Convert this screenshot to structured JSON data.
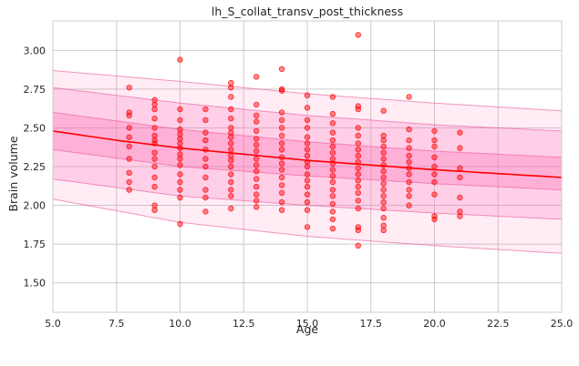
{
  "chart_data": {
    "type": "scatter",
    "title": "lh_S_collat_transv_post_thickness",
    "xlabel": "Age",
    "ylabel": "Brain volume",
    "xlim": [
      5,
      25
    ],
    "ylim": [
      1.31,
      3.19
    ],
    "xticks": [
      "5.0",
      "7.5",
      "10.0",
      "12.5",
      "15.0",
      "17.5",
      "20.0",
      "22.5",
      "25.0"
    ],
    "yticks": [
      "1.50",
      "1.75",
      "2.00",
      "2.25",
      "2.50",
      "2.75",
      "3.00"
    ],
    "grid": true,
    "colors": {
      "points": "#ff0000",
      "line": "#ff0000",
      "band": "#ff69b4",
      "band_edge": "#e8559a"
    },
    "trend": {
      "x": [
        5,
        7.5,
        10,
        12.5,
        15,
        17.5,
        20,
        22.5,
        25
      ],
      "mean": [
        2.48,
        2.42,
        2.37,
        2.33,
        2.29,
        2.26,
        2.23,
        2.205,
        2.18
      ]
    },
    "bands": [
      {
        "name": "outer",
        "x": [
          5,
          10,
          15,
          20,
          25
        ],
        "lower": [
          2.04,
          1.89,
          1.8,
          1.74,
          1.69
        ],
        "upper": [
          2.87,
          2.8,
          2.72,
          2.66,
          2.61
        ]
      },
      {
        "name": "middle",
        "x": [
          5,
          10,
          15,
          20,
          25
        ],
        "lower": [
          2.17,
          2.06,
          2.0,
          1.95,
          1.91
        ],
        "upper": [
          2.76,
          2.66,
          2.58,
          2.52,
          2.48
        ]
      },
      {
        "name": "inner",
        "x": [
          5,
          10,
          15,
          20,
          25
        ],
        "lower": [
          2.36,
          2.25,
          2.19,
          2.14,
          2.1
        ],
        "upper": [
          2.6,
          2.49,
          2.41,
          2.35,
          2.31
        ]
      }
    ],
    "points": [
      [
        8,
        2.76
      ],
      [
        8,
        2.6
      ],
      [
        8,
        2.58
      ],
      [
        8,
        2.5
      ],
      [
        8,
        2.44
      ],
      [
        8,
        2.38
      ],
      [
        8,
        2.3
      ],
      [
        8,
        2.21
      ],
      [
        8,
        2.15
      ],
      [
        8,
        2.1
      ],
      [
        9,
        2.68
      ],
      [
        9,
        2.65
      ],
      [
        9,
        2.62
      ],
      [
        9,
        2.56
      ],
      [
        9,
        2.5
      ],
      [
        9,
        2.45
      ],
      [
        9,
        2.42
      ],
      [
        9,
        2.4
      ],
      [
        9,
        2.34
      ],
      [
        9,
        2.3
      ],
      [
        9,
        2.25
      ],
      [
        9,
        2.18
      ],
      [
        9,
        2.12
      ],
      [
        9,
        2.0
      ],
      [
        9,
        1.97
      ],
      [
        10,
        2.94
      ],
      [
        10,
        2.62
      ],
      [
        10,
        2.55
      ],
      [
        10,
        2.49
      ],
      [
        10,
        2.46
      ],
      [
        10,
        2.43
      ],
      [
        10,
        2.4
      ],
      [
        10,
        2.37
      ],
      [
        10,
        2.33
      ],
      [
        10,
        2.3
      ],
      [
        10,
        2.26
      ],
      [
        10,
        2.2
      ],
      [
        10,
        2.15
      ],
      [
        10,
        2.1
      ],
      [
        10,
        2.05
      ],
      [
        10,
        1.88
      ],
      [
        11,
        2.62
      ],
      [
        11,
        2.55
      ],
      [
        11,
        2.47
      ],
      [
        11,
        2.42
      ],
      [
        11,
        2.36
      ],
      [
        11,
        2.3
      ],
      [
        11,
        2.25
      ],
      [
        11,
        2.18
      ],
      [
        11,
        2.1
      ],
      [
        11,
        2.05
      ],
      [
        11,
        1.96
      ],
      [
        12,
        2.79
      ],
      [
        12,
        2.76
      ],
      [
        12,
        2.7
      ],
      [
        12,
        2.62
      ],
      [
        12,
        2.56
      ],
      [
        12,
        2.5
      ],
      [
        12,
        2.47
      ],
      [
        12,
        2.44
      ],
      [
        12,
        2.4
      ],
      [
        12,
        2.36
      ],
      [
        12,
        2.32
      ],
      [
        12,
        2.29
      ],
      [
        12,
        2.25
      ],
      [
        12,
        2.2
      ],
      [
        12,
        2.15
      ],
      [
        12,
        2.1
      ],
      [
        12,
        2.06
      ],
      [
        12,
        1.98
      ],
      [
        13,
        2.83
      ],
      [
        13,
        2.65
      ],
      [
        13,
        2.58
      ],
      [
        13,
        2.54
      ],
      [
        13,
        2.48
      ],
      [
        13,
        2.43
      ],
      [
        13,
        2.39
      ],
      [
        13,
        2.35
      ],
      [
        13,
        2.3
      ],
      [
        13,
        2.26
      ],
      [
        13,
        2.22
      ],
      [
        13,
        2.17
      ],
      [
        13,
        2.12
      ],
      [
        13,
        2.07
      ],
      [
        13,
        2.03
      ],
      [
        13,
        1.99
      ],
      [
        14,
        2.88
      ],
      [
        14,
        2.75
      ],
      [
        14,
        2.74
      ],
      [
        14,
        2.6
      ],
      [
        14,
        2.55
      ],
      [
        14,
        2.5
      ],
      [
        14,
        2.45
      ],
      [
        14,
        2.4
      ],
      [
        14,
        2.36
      ],
      [
        14,
        2.31
      ],
      [
        14,
        2.27
      ],
      [
        14,
        2.23
      ],
      [
        14,
        2.18
      ],
      [
        14,
        2.13
      ],
      [
        14,
        2.08
      ],
      [
        14,
        2.02
      ],
      [
        14,
        1.97
      ],
      [
        15,
        2.71
      ],
      [
        15,
        2.63
      ],
      [
        15,
        2.55
      ],
      [
        15,
        2.5
      ],
      [
        15,
        2.44
      ],
      [
        15,
        2.4
      ],
      [
        15,
        2.36
      ],
      [
        15,
        2.32
      ],
      [
        15,
        2.28
      ],
      [
        15,
        2.25
      ],
      [
        15,
        2.2
      ],
      [
        15,
        2.16
      ],
      [
        15,
        2.12
      ],
      [
        15,
        2.07
      ],
      [
        15,
        2.02
      ],
      [
        15,
        1.97
      ],
      [
        15,
        1.86
      ],
      [
        16,
        2.7
      ],
      [
        16,
        2.59
      ],
      [
        16,
        2.53
      ],
      [
        16,
        2.47
      ],
      [
        16,
        2.42
      ],
      [
        16,
        2.38
      ],
      [
        16,
        2.34
      ],
      [
        16,
        2.3
      ],
      [
        16,
        2.27
      ],
      [
        16,
        2.23
      ],
      [
        16,
        2.19
      ],
      [
        16,
        2.15
      ],
      [
        16,
        2.1
      ],
      [
        16,
        2.06
      ],
      [
        16,
        2.01
      ],
      [
        16,
        1.96
      ],
      [
        16,
        1.91
      ],
      [
        16,
        1.85
      ],
      [
        17,
        3.1
      ],
      [
        17,
        2.64
      ],
      [
        17,
        2.62
      ],
      [
        17,
        2.5
      ],
      [
        17,
        2.45
      ],
      [
        17,
        2.4
      ],
      [
        17,
        2.36
      ],
      [
        17,
        2.32
      ],
      [
        17,
        2.28
      ],
      [
        17,
        2.24
      ],
      [
        17,
        2.2
      ],
      [
        17,
        2.16
      ],
      [
        17,
        2.12
      ],
      [
        17,
        2.08
      ],
      [
        17,
        2.03
      ],
      [
        17,
        1.98
      ],
      [
        17,
        1.86
      ],
      [
        17,
        1.84
      ],
      [
        17,
        1.74
      ],
      [
        18,
        2.61
      ],
      [
        18,
        2.45
      ],
      [
        18,
        2.42
      ],
      [
        18,
        2.38
      ],
      [
        18,
        2.34
      ],
      [
        18,
        2.3
      ],
      [
        18,
        2.26
      ],
      [
        18,
        2.22
      ],
      [
        18,
        2.18
      ],
      [
        18,
        2.14
      ],
      [
        18,
        2.1
      ],
      [
        18,
        2.06
      ],
      [
        18,
        2.02
      ],
      [
        18,
        1.98
      ],
      [
        18,
        1.92
      ],
      [
        18,
        1.87
      ],
      [
        18,
        1.84
      ],
      [
        19,
        2.7
      ],
      [
        19,
        2.49
      ],
      [
        19,
        2.42
      ],
      [
        19,
        2.37
      ],
      [
        19,
        2.32
      ],
      [
        19,
        2.28
      ],
      [
        19,
        2.24
      ],
      [
        19,
        2.2
      ],
      [
        19,
        2.15
      ],
      [
        19,
        2.1
      ],
      [
        19,
        2.06
      ],
      [
        19,
        2.0
      ],
      [
        20,
        2.48
      ],
      [
        20,
        2.42
      ],
      [
        20,
        2.38
      ],
      [
        20,
        2.31
      ],
      [
        20,
        2.25
      ],
      [
        20,
        2.2
      ],
      [
        20,
        2.15
      ],
      [
        20,
        2.07
      ],
      [
        20,
        1.93
      ],
      [
        20,
        1.91
      ],
      [
        21,
        2.47
      ],
      [
        21,
        2.37
      ],
      [
        21,
        2.24
      ],
      [
        21,
        2.18
      ],
      [
        21,
        2.05
      ],
      [
        21,
        1.96
      ],
      [
        21,
        1.93
      ]
    ]
  }
}
